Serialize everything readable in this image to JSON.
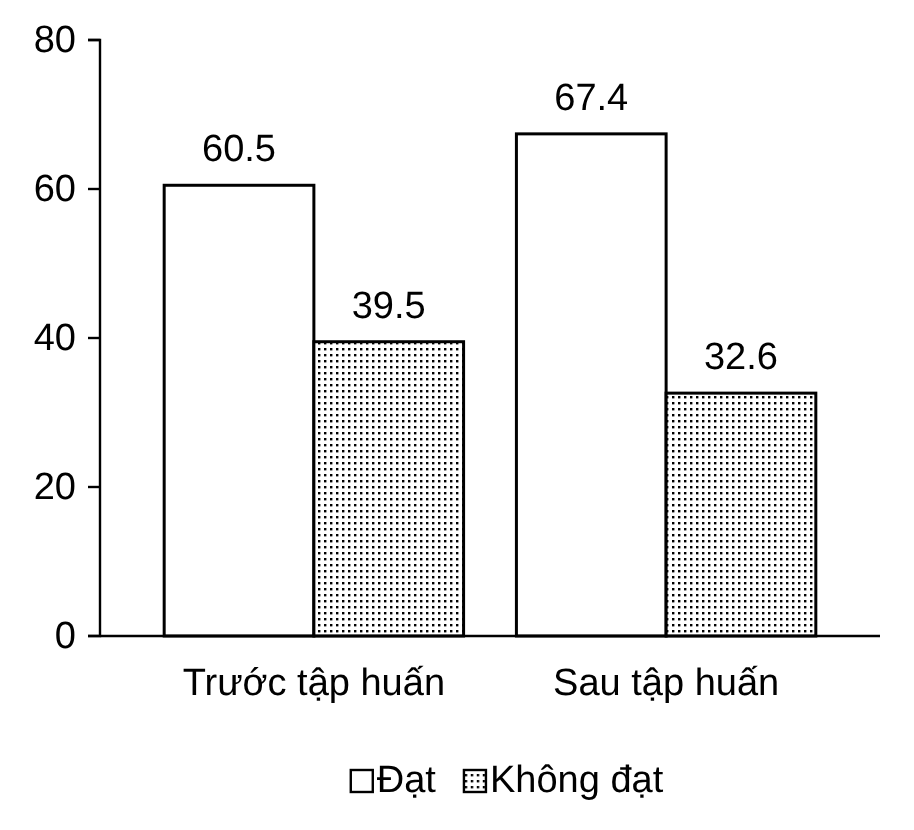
{
  "chart_data": {
    "type": "bar",
    "categories": [
      "Trước tập huấn",
      "Sau tập huấn"
    ],
    "series": [
      {
        "name": "Đạt",
        "color": "#ffffff",
        "values": [
          60.5,
          67.4
        ]
      },
      {
        "name": "Không đạt",
        "color": "#000000",
        "values": [
          39.5,
          32.6
        ]
      }
    ],
    "ylim": [
      0,
      80
    ],
    "yticks": [
      0,
      20,
      40,
      60,
      80
    ],
    "data_labels": true,
    "legend": "bottom",
    "grid": false
  }
}
